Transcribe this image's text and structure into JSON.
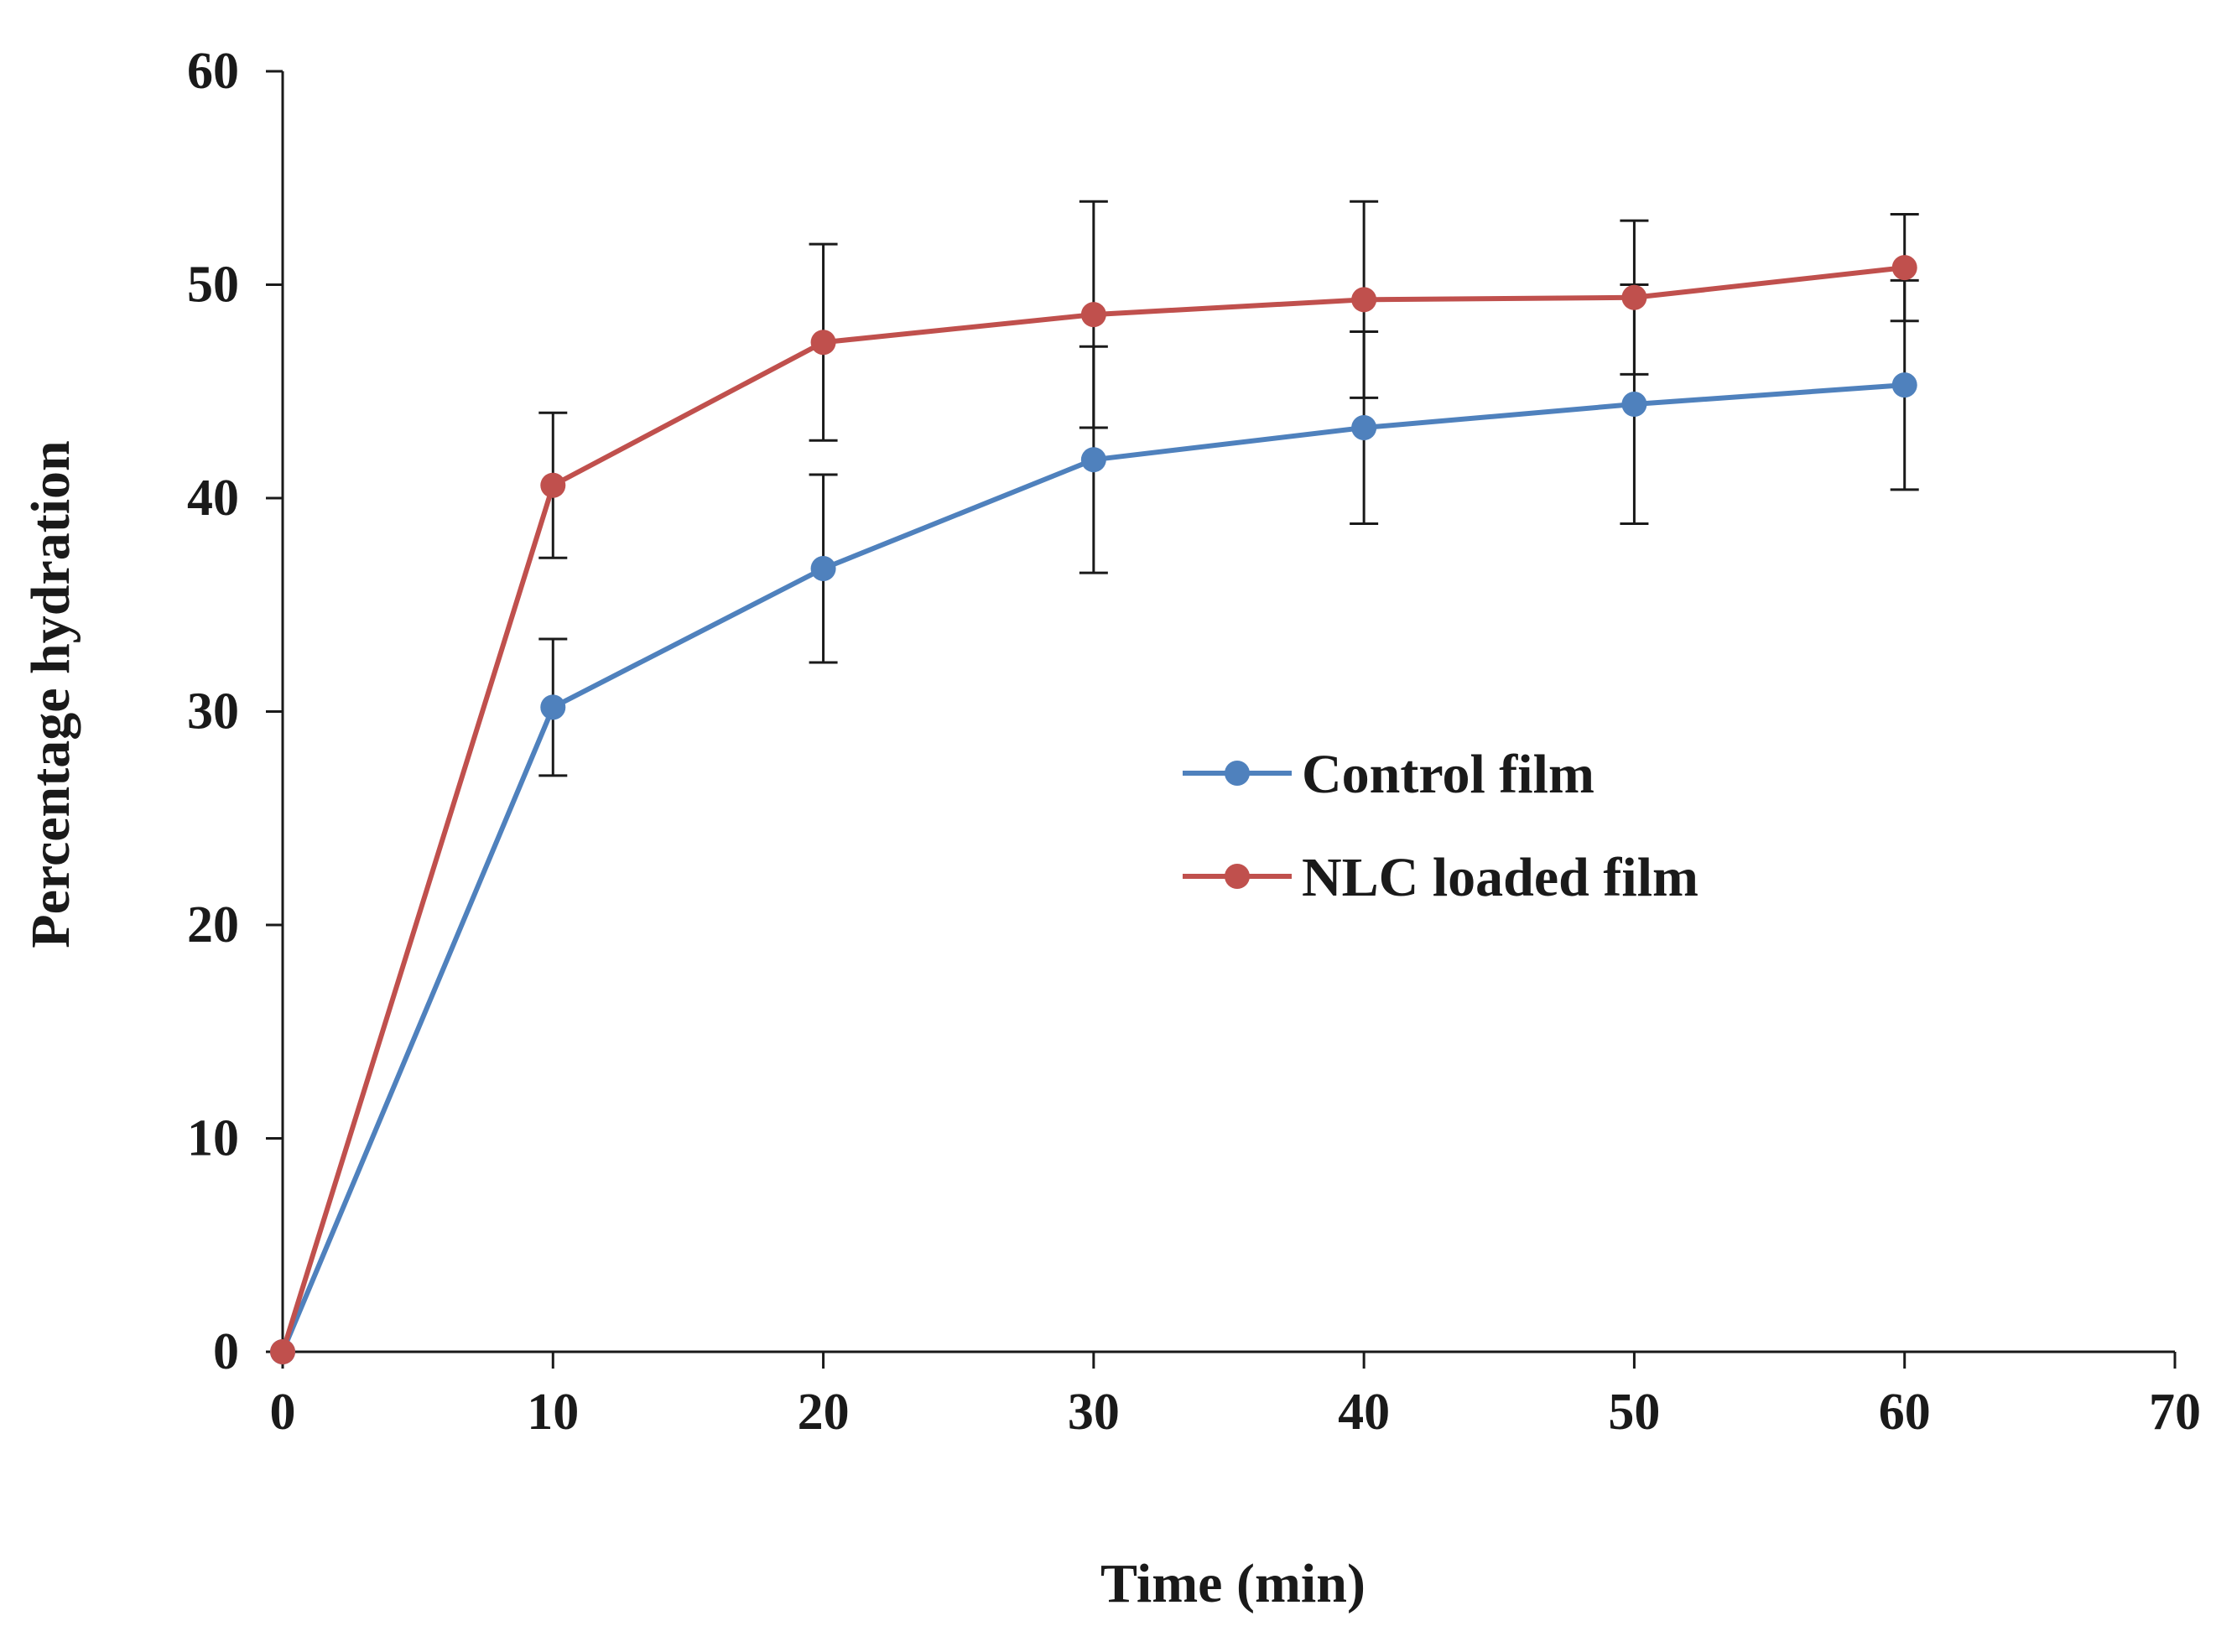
{
  "chart_data": {
    "type": "line",
    "title": "",
    "xlabel": "Time (min)",
    "ylabel": "Percentage hydration",
    "xlim": [
      0,
      70
    ],
    "ylim": [
      0,
      60
    ],
    "xticks": [
      0,
      10,
      20,
      30,
      40,
      50,
      60,
      70
    ],
    "yticks": [
      0,
      10,
      20,
      30,
      40,
      50,
      60
    ],
    "grid": false,
    "legend_position": "center-right",
    "series": [
      {
        "name": "Control film",
        "color": "#4f81bd",
        "x": [
          0,
          10,
          20,
          30,
          40,
          50,
          60
        ],
        "y": [
          0,
          30.2,
          36.7,
          41.8,
          43.3,
          44.4,
          45.3
        ],
        "error": [
          0,
          3.2,
          4.4,
          5.3,
          4.5,
          5.6,
          4.9
        ]
      },
      {
        "name": "NLC loaded film",
        "color": "#c0504d",
        "x": [
          0,
          10,
          20,
          30,
          40,
          50,
          60
        ],
        "y": [
          0,
          40.6,
          47.3,
          48.6,
          49.3,
          49.4,
          50.8
        ],
        "error": [
          0,
          3.4,
          4.6,
          5.3,
          4.6,
          3.6,
          2.5
        ]
      }
    ]
  }
}
